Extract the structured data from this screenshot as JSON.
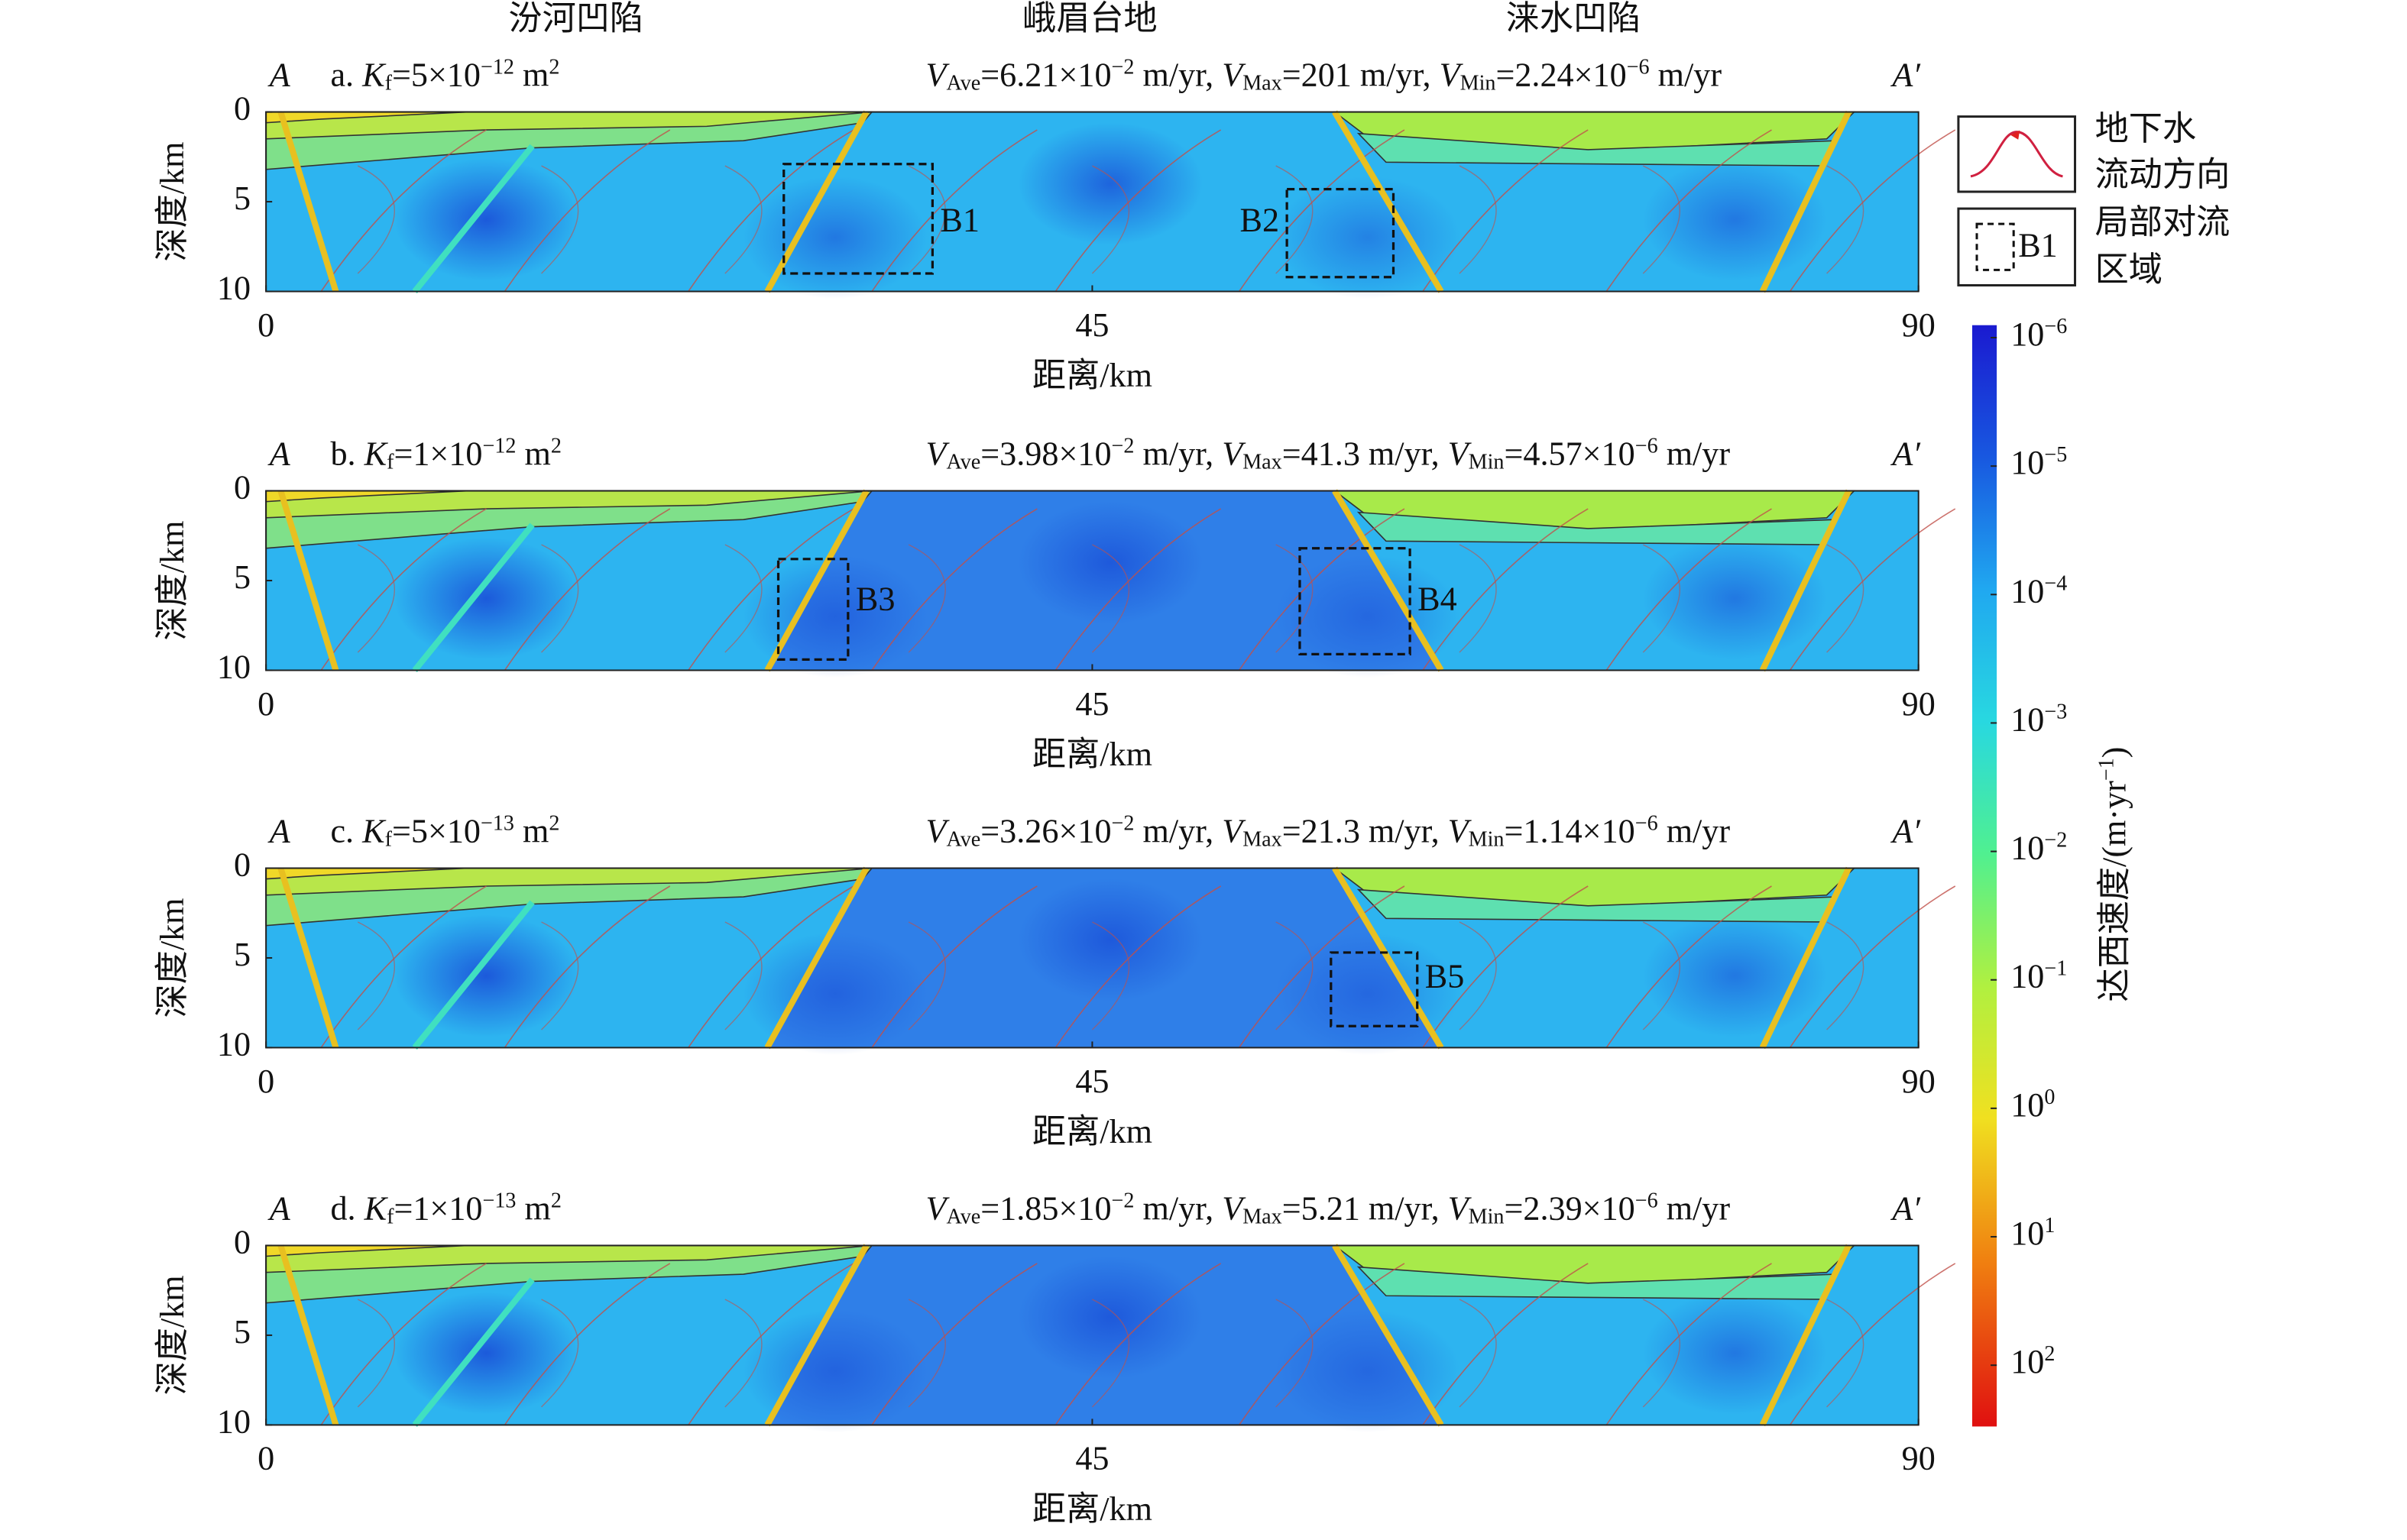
{
  "region_labels": [
    "汾河凹陷",
    "峨眉台地",
    "涞水凹陷"
  ],
  "chart_data": [
    {
      "type": "section",
      "title": [
        [
          "a. ",
          "n"
        ],
        [
          "K",
          "i"
        ],
        [
          "f",
          "sub"
        ],
        [
          "=5×10",
          "n"
        ],
        [
          "−12",
          "sup"
        ],
        [
          " m",
          "n"
        ],
        [
          "2",
          "sup"
        ]
      ],
      "stats": [
        [
          "V",
          "i"
        ],
        [
          "Ave",
          "sub"
        ],
        [
          "=6.21×10",
          "n"
        ],
        [
          "−2",
          "sup"
        ],
        [
          " m/yr, ",
          "n"
        ],
        [
          "V",
          "i"
        ],
        [
          "Max",
          "sub"
        ],
        [
          "=201 m/yr, ",
          "n"
        ],
        [
          "V",
          "i"
        ],
        [
          "Min",
          "sub"
        ],
        [
          "=2.24×10",
          "n"
        ],
        [
          "−6",
          "sup"
        ],
        [
          " m/yr",
          "n"
        ]
      ],
      "left_label": "A",
      "right_label": "A′",
      "xlabel": "距离/km",
      "ylabel": "深度/km",
      "xlim": [
        0,
        90
      ],
      "xticks": [
        0,
        45,
        90
      ],
      "ylim": [
        0,
        10
      ],
      "yticks": [
        0,
        5,
        10
      ],
      "boxes": [
        "B1",
        "B2"
      ]
    },
    {
      "type": "section",
      "title": [
        [
          "b. ",
          "n"
        ],
        [
          "K",
          "i"
        ],
        [
          "f",
          "sub"
        ],
        [
          "=1×10",
          "n"
        ],
        [
          "−12",
          "sup"
        ],
        [
          " m",
          "n"
        ],
        [
          "2",
          "sup"
        ]
      ],
      "stats": [
        [
          "V",
          "i"
        ],
        [
          "Ave",
          "sub"
        ],
        [
          "=3.98×10",
          "n"
        ],
        [
          "−2",
          "sup"
        ],
        [
          " m/yr, ",
          "n"
        ],
        [
          "V",
          "i"
        ],
        [
          "Max",
          "sub"
        ],
        [
          "=41.3 m/yr, ",
          "n"
        ],
        [
          "V",
          "i"
        ],
        [
          "Min",
          "sub"
        ],
        [
          "=4.57×10",
          "n"
        ],
        [
          "−6",
          "sup"
        ],
        [
          " m/yr",
          "n"
        ]
      ],
      "left_label": "A",
      "right_label": "A′",
      "xlabel": "距离/km",
      "ylabel": "深度/km",
      "xlim": [
        0,
        90
      ],
      "xticks": [
        0,
        45,
        90
      ],
      "ylim": [
        0,
        10
      ],
      "yticks": [
        0,
        5,
        10
      ],
      "boxes": [
        "B3",
        "B4"
      ]
    },
    {
      "type": "section",
      "title": [
        [
          "c. ",
          "n"
        ],
        [
          "K",
          "i"
        ],
        [
          "f",
          "sub"
        ],
        [
          "=5×10",
          "n"
        ],
        [
          "−13",
          "sup"
        ],
        [
          " m",
          "n"
        ],
        [
          "2",
          "sup"
        ]
      ],
      "stats": [
        [
          "V",
          "i"
        ],
        [
          "Ave",
          "sub"
        ],
        [
          "=3.26×10",
          "n"
        ],
        [
          "−2",
          "sup"
        ],
        [
          " m/yr, ",
          "n"
        ],
        [
          "V",
          "i"
        ],
        [
          "Max",
          "sub"
        ],
        [
          "=21.3 m/yr, ",
          "n"
        ],
        [
          "V",
          "i"
        ],
        [
          "Min",
          "sub"
        ],
        [
          "=1.14×10",
          "n"
        ],
        [
          "−6",
          "sup"
        ],
        [
          " m/yr",
          "n"
        ]
      ],
      "left_label": "A",
      "right_label": "A′",
      "xlabel": "距离/km",
      "ylabel": "深度/km",
      "xlim": [
        0,
        90
      ],
      "xticks": [
        0,
        45,
        90
      ],
      "ylim": [
        0,
        10
      ],
      "yticks": [
        0,
        5,
        10
      ],
      "boxes": [
        "B5"
      ]
    },
    {
      "type": "section",
      "title": [
        [
          "d. ",
          "n"
        ],
        [
          "K",
          "i"
        ],
        [
          "f",
          "sub"
        ],
        [
          "=1×10",
          "n"
        ],
        [
          "−13",
          "sup"
        ],
        [
          " m",
          "n"
        ],
        [
          "2",
          "sup"
        ]
      ],
      "stats": [
        [
          "V",
          "i"
        ],
        [
          "Ave",
          "sub"
        ],
        [
          "=1.85×10",
          "n"
        ],
        [
          "−2",
          "sup"
        ],
        [
          " m/yr, ",
          "n"
        ],
        [
          "V",
          "i"
        ],
        [
          "Max",
          "sub"
        ],
        [
          "=5.21 m/yr, ",
          "n"
        ],
        [
          "V",
          "i"
        ],
        [
          "Min",
          "sub"
        ],
        [
          "=2.39×10",
          "n"
        ],
        [
          "−6",
          "sup"
        ],
        [
          " m/yr",
          "n"
        ]
      ],
      "left_label": "A",
      "right_label": "A′",
      "xlabel": "距离/km",
      "ylabel": "深度/km",
      "xlim": [
        0,
        90
      ],
      "xticks": [
        0,
        45,
        90
      ],
      "ylim": [
        0,
        10
      ],
      "yticks": [
        0,
        5,
        10
      ],
      "boxes": []
    }
  ],
  "legend": {
    "flow": [
      "地下水",
      "流动方向"
    ],
    "cell": [
      "局部对流",
      "区域"
    ],
    "cell_box": "B1"
  },
  "colorbar": {
    "label": [
      [
        "达西速度/(m·yr",
        "n"
      ],
      [
        "−1",
        "sup"
      ],
      [
        ")",
        "n"
      ]
    ],
    "log": true,
    "lim": [
      8e-07,
      300
    ],
    "ticks": [
      {
        "value": 1e-06,
        "label": [
          "10",
          "−6"
        ]
      },
      {
        "value": 1e-05,
        "label": [
          "10",
          "−5"
        ]
      },
      {
        "value": 0.0001,
        "label": [
          "10",
          "−4"
        ]
      },
      {
        "value": 0.001,
        "label": [
          "10",
          "−3"
        ]
      },
      {
        "value": 0.01,
        "label": [
          "10",
          "−2"
        ]
      },
      {
        "value": 0.1,
        "label": [
          "10",
          "−1"
        ]
      },
      {
        "value": 1,
        "label": [
          "10",
          "0"
        ]
      },
      {
        "value": 10,
        "label": [
          "10",
          "1"
        ]
      },
      {
        "value": 100,
        "label": [
          "10",
          "2"
        ]
      }
    ]
  }
}
